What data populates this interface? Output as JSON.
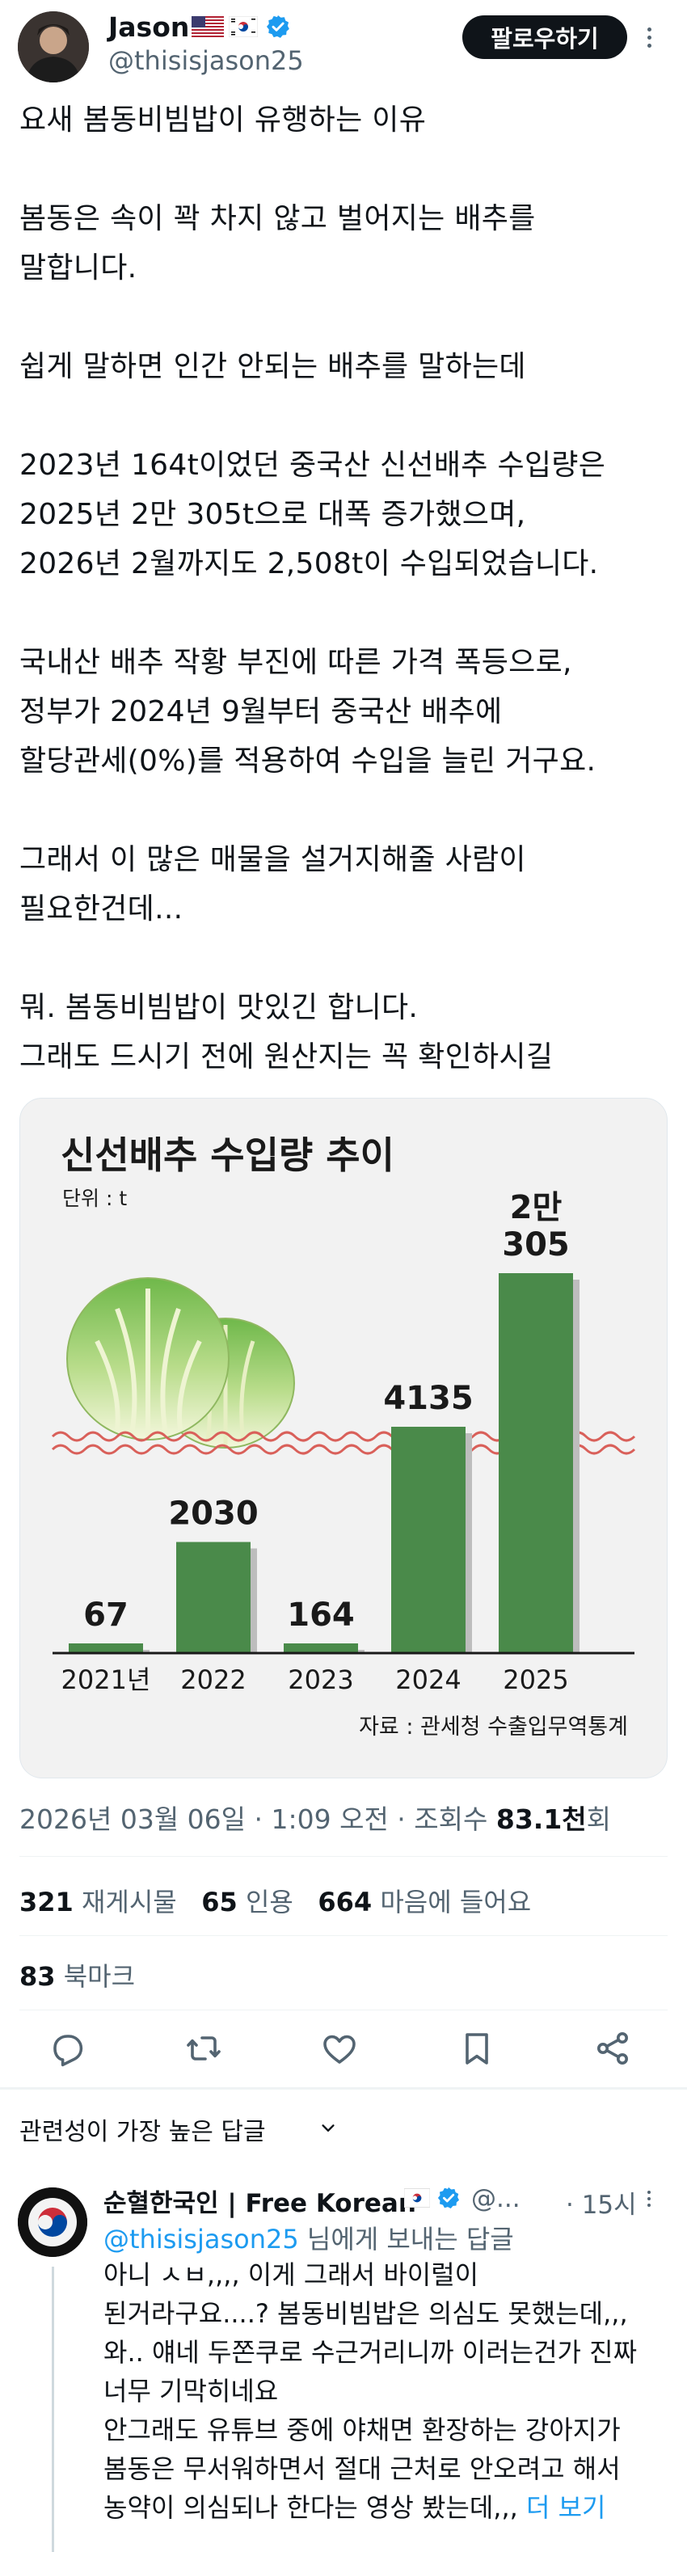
{
  "author": {
    "name": "Jason",
    "handle": "@thisisjason25",
    "follow_label": "팔로우하기",
    "flags": [
      "us-flag",
      "kr-flag"
    ],
    "verified": true
  },
  "tweet": {
    "lines": [
      "요새 봄동비빔밥이 유행하는 이유",
      "",
      "봄동은 속이 꽉 차지 않고 벌어지는 배추를",
      "말합니다.",
      "",
      "쉽게 말하면 인간 안되는 배추를 말하는데",
      "",
      "2023년 164t이었던 중국산 신선배추 수입량은",
      "2025년 2만 305t으로 대폭 증가했으며,",
      "2026년 2월까지도 2,508t이 수입되었습니다.",
      "",
      "국내산 배추 작황 부진에 따른 가격 폭등으로,",
      "정부가 2024년 9월부터 중국산 배추에",
      "할당관세(0%)를 적용하여 수입을 늘린 거구요.",
      "",
      "그래서 이 많은 매물을 설거지해줄 사람이",
      "필요한건데...",
      "",
      "뭐. 봄동비빔밥이 맛있긴 합니다.",
      "그래도 드시기 전에 원산지는 꼭 확인하시길"
    ]
  },
  "chart_data": {
    "type": "bar",
    "title": "신선배추 수입량 추이",
    "unit": "단위 : t",
    "categories": [
      "2021년",
      "2022",
      "2023",
      "2024",
      "2025"
    ],
    "values": [
      67,
      2030,
      164,
      4135,
      20305
    ],
    "value_labels": [
      "67",
      "2030",
      "164",
      "4135",
      "2만\n305"
    ],
    "source": "자료 : 관세청 수출입무역통계",
    "bar_color": "#4a8a4a",
    "axis_break": true
  },
  "meta": {
    "date": "2026년 03월 06일 · 1:09 오전 · 조회수 ",
    "views": "83.1천",
    "views_suffix": "회"
  },
  "stats": {
    "retweets": "321",
    "retweets_label": "재게시물",
    "quotes": "65",
    "quotes_label": "인용",
    "likes": "664",
    "likes_label": "마음에 들어요",
    "bookmarks": "83",
    "bookmarks_label": "북마크"
  },
  "actions": [
    "reply-icon",
    "retweet-icon",
    "like-icon",
    "bookmark-icon",
    "share-icon"
  ],
  "sort_label": "관련성이 가장 높은 답글",
  "reply": {
    "name": "순혈한국인 | Free Korean",
    "handle": "@...",
    "time": "· 15시",
    "reply_to_mention": "@thisisjason25",
    "reply_to_suffix": " 님에게 보내는 답글",
    "lines": [
      "아니 ㅅㅂ,,,, 이게 그래서 바이럴이",
      "된거라구요....?  봄동비빔밥은 의심도 못했는데,,,",
      "와.. 얘네 두쫀쿠로 수근거리니까 이러는건가 진짜",
      "너무 기막히네요",
      "안그래도 유튜브 중에 야채면 환장하는 강아지가",
      "봄동은 무서워하면서 절대 근처로 안오려고 해서",
      "농약이 의심되나 한다는 영상 봤는데,,, "
    ],
    "show_more": "더 보기"
  }
}
